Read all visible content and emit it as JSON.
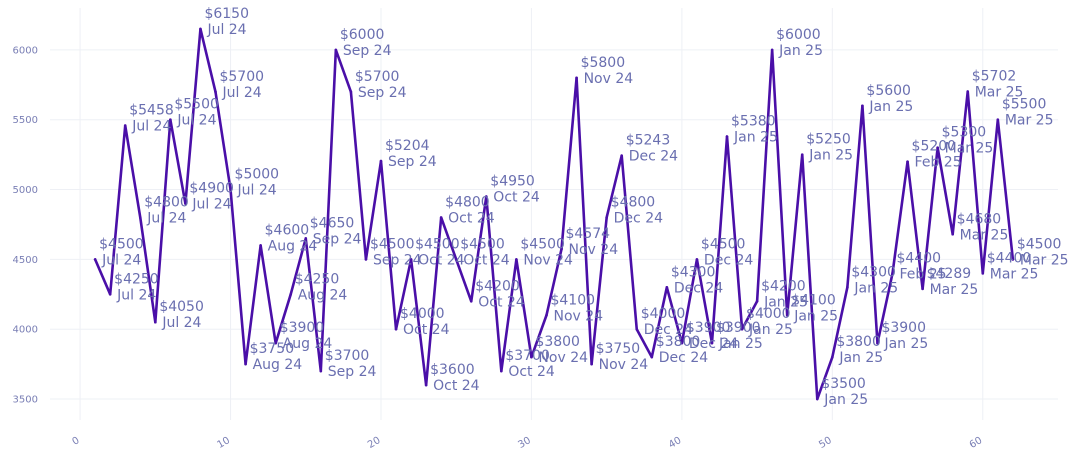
{
  "chart_data": {
    "type": "line",
    "title": "",
    "xlabel": "",
    "ylabel": "",
    "xlim": [
      -2,
      65
    ],
    "ylim": [
      3350,
      6300
    ],
    "x_ticks": [
      0,
      10,
      20,
      30,
      40,
      50,
      60
    ],
    "y_ticks": [
      3500,
      4000,
      4500,
      5000,
      5500,
      6000
    ],
    "grid": true,
    "line_color": "#4a0fa8",
    "label_color": "#6a6fb0",
    "series": [
      {
        "x": [
          1,
          2,
          3,
          4,
          5,
          6,
          7,
          8,
          9,
          10,
          11,
          12,
          13,
          14,
          15,
          16,
          17,
          18,
          19,
          20,
          21,
          22,
          23,
          24,
          25,
          26,
          27,
          28,
          29,
          30,
          31,
          32,
          33,
          34,
          35,
          36,
          37,
          38,
          39,
          40,
          41,
          42,
          43,
          44,
          45,
          46,
          47,
          48,
          49,
          50,
          51,
          52,
          53,
          54,
          55,
          56,
          57,
          58,
          59,
          60,
          61,
          62
        ],
        "y": [
          4500,
          4250,
          5458,
          4800,
          4050,
          5500,
          4900,
          6150,
          5700,
          5000,
          3750,
          4600,
          3900,
          4250,
          4650,
          3700,
          6000,
          5700,
          4500,
          5204,
          4000,
          4500,
          3600,
          4800,
          4500,
          4200,
          4950,
          3700,
          4500,
          3800,
          4100,
          4574,
          5800,
          3750,
          4800,
          5243,
          4000,
          3800,
          4300,
          3900,
          4500,
          3900,
          5380,
          4000,
          4200,
          6000,
          4100,
          5250,
          3500,
          3800,
          4300,
          5600,
          3900,
          4400,
          5200,
          4289,
          5300,
          4680,
          5702,
          4400,
          5500,
          4500
        ],
        "labels": [
          [
            "$4500",
            "Jul 24"
          ],
          [
            "$4250",
            "Jul 24"
          ],
          [
            "$5458",
            "Jul 24"
          ],
          [
            "$4800",
            "Jul 24"
          ],
          [
            "$4050",
            "Jul 24"
          ],
          [
            "$5500",
            "Jul 24"
          ],
          [
            "$4900",
            "Jul 24"
          ],
          [
            "$6150",
            "Jul 24"
          ],
          [
            "$5700",
            "Jul 24"
          ],
          [
            "$5000",
            "Jul 24"
          ],
          [
            "$3750",
            "Aug 24"
          ],
          [
            "$4600",
            "Aug 24"
          ],
          [
            "$3900",
            "Aug 24"
          ],
          [
            "$4250",
            "Aug 24"
          ],
          [
            "$4650",
            "Sep 24"
          ],
          [
            "$3700",
            "Sep 24"
          ],
          [
            "$6000",
            "Sep 24"
          ],
          [
            "$5700",
            "Sep 24"
          ],
          [
            "$4500",
            "Sep 24"
          ],
          [
            "$5204",
            "Sep 24"
          ],
          [
            "$4000",
            "Oct 24"
          ],
          [
            "$4500",
            "Oct 24"
          ],
          [
            "$3600",
            "Oct 24"
          ],
          [
            "$4800",
            "Oct 24"
          ],
          [
            "$4500",
            "Oct 24"
          ],
          [
            "$4200",
            "Oct 24"
          ],
          [
            "$4950",
            "Oct 24"
          ],
          [
            "$3700",
            "Oct 24"
          ],
          [
            "$4500",
            "Nov 24"
          ],
          [
            "$3800",
            "Nov 24"
          ],
          [
            "$4100",
            "Nov 24"
          ],
          [
            "$4574",
            "Nov 24"
          ],
          [
            "$5800",
            "Nov 24"
          ],
          [
            "$3750",
            "Nov 24"
          ],
          [
            "$4800",
            "Dec 24"
          ],
          [
            "$5243",
            "Dec 24"
          ],
          [
            "$4000",
            "Dec 24"
          ],
          [
            "$3800",
            "Dec 24"
          ],
          [
            "$4300",
            "Dec 24"
          ],
          [
            "$3900",
            "Dec 24"
          ],
          [
            "$4500",
            "Dec 24"
          ],
          [
            "$3900",
            "Jan 25"
          ],
          [
            "$5380",
            "Jan 25"
          ],
          [
            "$4000",
            "Jan 25"
          ],
          [
            "$4200",
            "Jan 25"
          ],
          [
            "$6000",
            "Jan 25"
          ],
          [
            "$4100",
            "Jan 25"
          ],
          [
            "$5250",
            "Jan 25"
          ],
          [
            "$3500",
            "Jan 25"
          ],
          [
            "$3800",
            "Jan 25"
          ],
          [
            "$4300",
            "Jan 25"
          ],
          [
            "$5600",
            "Jan 25"
          ],
          [
            "$3900",
            "Jan 25"
          ],
          [
            "$4400",
            "Feb 25"
          ],
          [
            "$5200",
            "Feb 25"
          ],
          [
            "$4289",
            "Mar 25"
          ],
          [
            "$5300",
            "Mar 25"
          ],
          [
            "$4680",
            "Mar 25"
          ],
          [
            "$5702",
            "Mar 25"
          ],
          [
            "$4400",
            "Mar 25"
          ],
          [
            "$5500",
            "Mar 25"
          ],
          [
            "$4500",
            "Mar 25"
          ]
        ]
      }
    ]
  }
}
